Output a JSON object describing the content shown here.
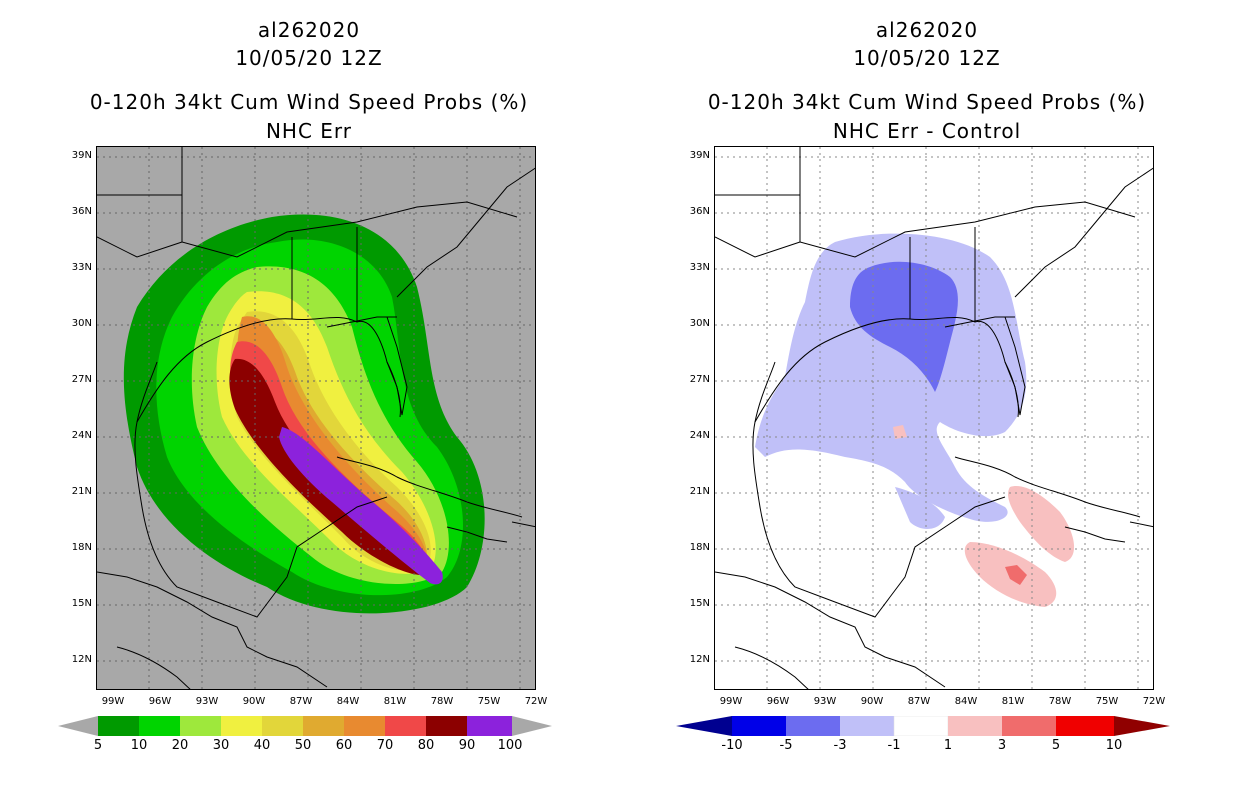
{
  "left_panel": {
    "storm_id": "al262020",
    "datetime": "10/05/20 12Z",
    "product": "0-120h 34kt Cum Wind Speed Probs (%)",
    "subtitle": "NHC Err",
    "colorbar": {
      "labels": [
        "5",
        "10",
        "20",
        "30",
        "40",
        "50",
        "60",
        "70",
        "80",
        "90",
        "100"
      ],
      "colors": [
        "#009a00",
        "#00d400",
        "#9ee83c",
        "#f0f040",
        "#e2d63a",
        "#e0aa30",
        "#e88a30",
        "#f04848",
        "#8c0000",
        "#8c22dc"
      ],
      "under_color": "#a8a8a8",
      "over_color": "#a8a8a8"
    }
  },
  "right_panel": {
    "storm_id": "al262020",
    "datetime": "10/05/20 12Z",
    "product": "0-120h 34kt Cum Wind Speed Probs (%)",
    "subtitle": "NHC Err - Control",
    "colorbar": {
      "labels": [
        "-10",
        "-5",
        "-3",
        "-1",
        "1",
        "3",
        "5",
        "10"
      ],
      "colors": [
        "#0000e8",
        "#6c6cf0",
        "#c0c0f8",
        "#ffffff",
        "#f8c0c0",
        "#f06c6c",
        "#f00000"
      ],
      "under_color": "#000090",
      "over_color": "#900000"
    }
  },
  "axes": {
    "lat_ticks": [
      "39N",
      "36N",
      "33N",
      "30N",
      "27N",
      "24N",
      "21N",
      "18N",
      "15N",
      "12N"
    ],
    "lon_ticks": [
      "99W",
      "96W",
      "93W",
      "90W",
      "87W",
      "84W",
      "81W",
      "78W",
      "75W",
      "72W"
    ]
  }
}
